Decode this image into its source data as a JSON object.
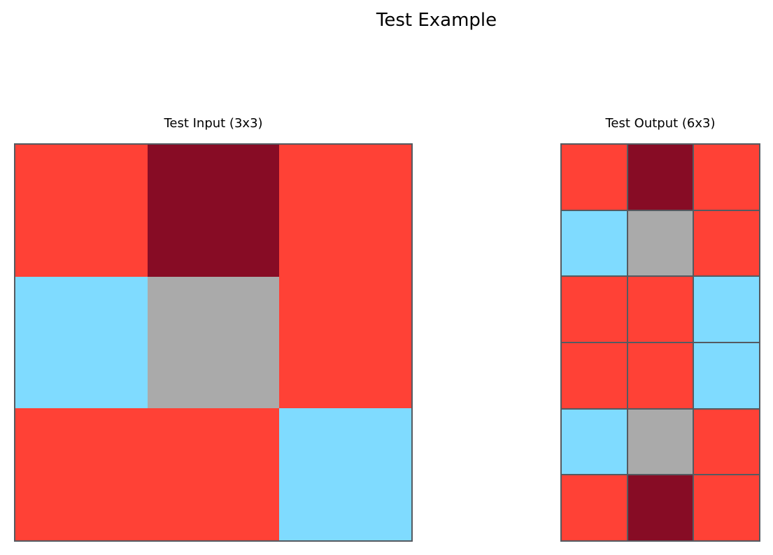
{
  "title": "Test Example",
  "palette": {
    "2": "#ff4136",
    "8": "#7fdbff",
    "5": "#aaaaaa",
    "9": "#870c25"
  },
  "input": {
    "title": "Test Input (3x3)",
    "rows": 3,
    "cols": 3,
    "grid": [
      [
        2,
        9,
        2
      ],
      [
        8,
        5,
        2
      ],
      [
        2,
        2,
        8
      ]
    ]
  },
  "output": {
    "title": "Test Output (6x3)",
    "rows": 6,
    "cols": 3,
    "grid": [
      [
        2,
        9,
        2
      ],
      [
        8,
        5,
        2
      ],
      [
        2,
        2,
        8
      ],
      [
        2,
        2,
        8
      ],
      [
        8,
        5,
        2
      ],
      [
        2,
        9,
        2
      ]
    ]
  }
}
